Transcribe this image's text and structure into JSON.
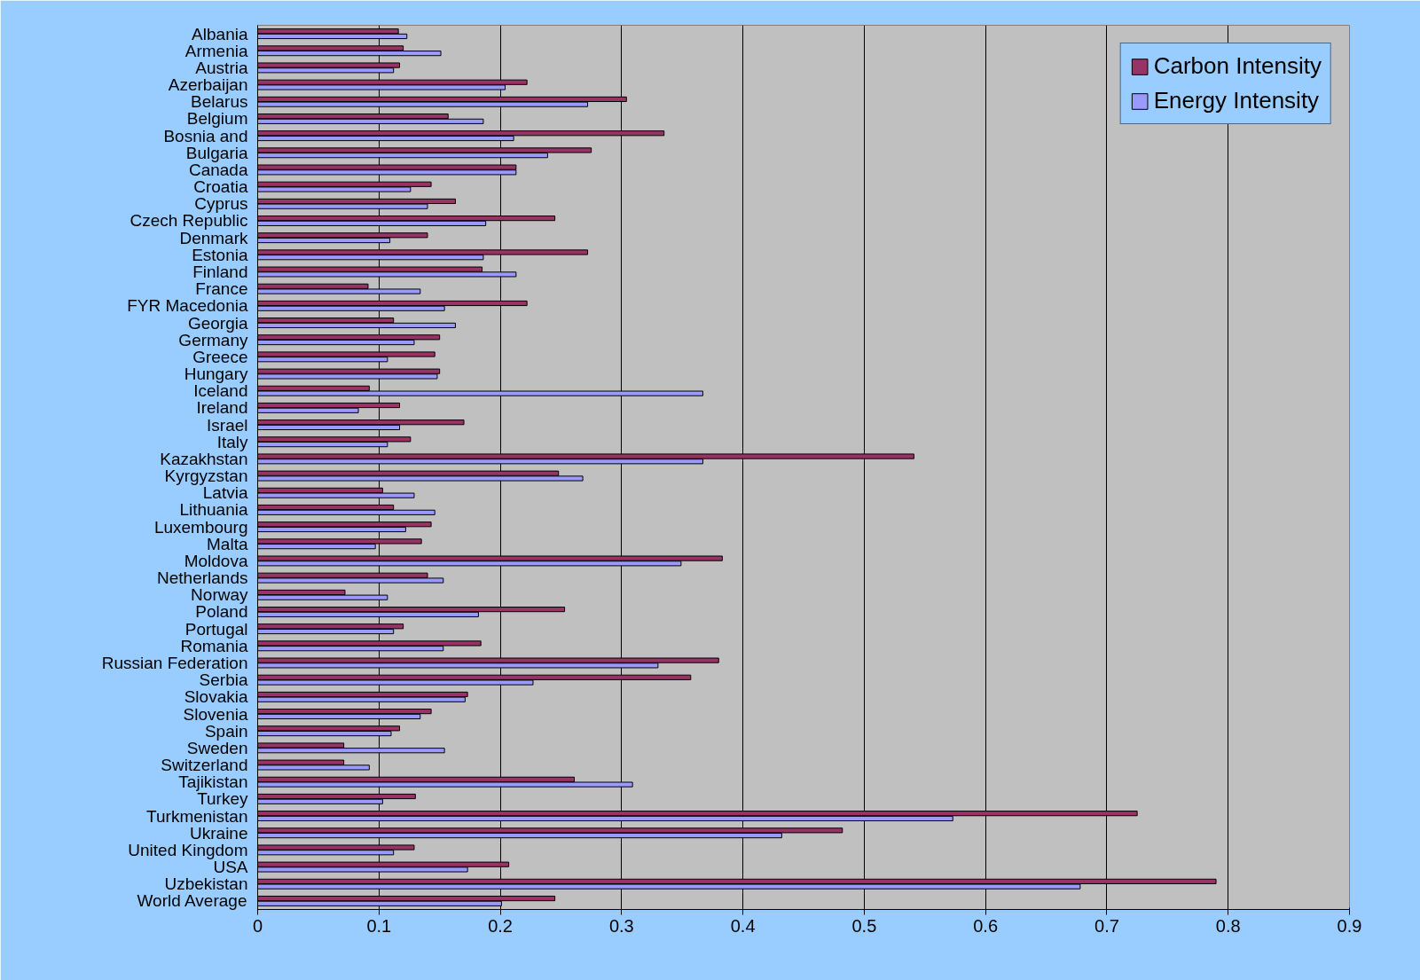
{
  "chart_data": {
    "type": "bar",
    "orientation": "horizontal",
    "categories": [
      "Albania",
      "Armenia",
      "Austria",
      "Azerbaijan",
      "Belarus",
      "Belgium",
      "Bosnia and",
      "Bulgaria",
      "Canada",
      "Croatia",
      "Cyprus",
      "Czech Republic",
      "Denmark",
      "Estonia",
      "Finland",
      "France",
      "FYR Macedonia",
      "Georgia",
      "Germany",
      "Greece",
      "Hungary",
      "Iceland",
      "Ireland",
      "Israel",
      "Italy",
      "Kazakhstan",
      "Kyrgyzstan",
      "Latvia",
      "Lithuania",
      "Luxembourg",
      "Malta",
      "Moldova",
      "Netherlands",
      "Norway",
      "Poland",
      "Portugal",
      "Romania",
      "Russian Federation",
      "Serbia",
      "Slovakia",
      "Slovenia",
      "Spain",
      "Sweden",
      "Switzerland",
      "Tajikistan",
      "Turkey",
      "Turkmenistan",
      "Ukraine",
      "United Kingdom",
      "USA",
      "Uzbekistan",
      "World Average"
    ],
    "series": [
      {
        "name": "Carbon Intensity",
        "color": "#993366",
        "values": [
          0.116,
          0.12,
          0.117,
          0.222,
          0.304,
          0.157,
          0.335,
          0.275,
          0.213,
          0.143,
          0.163,
          0.245,
          0.14,
          0.272,
          0.185,
          0.091,
          0.222,
          0.112,
          0.15,
          0.146,
          0.15,
          0.092,
          0.117,
          0.17,
          0.126,
          0.541,
          0.248,
          0.103,
          0.112,
          0.143,
          0.135,
          0.383,
          0.14,
          0.072,
          0.253,
          0.12,
          0.184,
          0.38,
          0.357,
          0.173,
          0.143,
          0.117,
          0.071,
          0.071,
          0.261,
          0.13,
          0.725,
          0.482,
          0.129,
          0.207,
          0.79,
          0.245
        ]
      },
      {
        "name": "Energy Intensity",
        "color": "#9999ff",
        "values": [
          0.123,
          0.151,
          0.112,
          0.204,
          0.272,
          0.186,
          0.211,
          0.239,
          0.213,
          0.126,
          0.14,
          0.188,
          0.109,
          0.186,
          0.213,
          0.134,
          0.154,
          0.163,
          0.129,
          0.107,
          0.148,
          0.367,
          0.083,
          0.117,
          0.107,
          0.367,
          0.268,
          0.129,
          0.146,
          0.122,
          0.097,
          0.349,
          0.153,
          0.107,
          0.182,
          0.112,
          0.153,
          0.33,
          0.227,
          0.171,
          0.134,
          0.11,
          0.154,
          0.092,
          0.309,
          0.103,
          0.573,
          0.432,
          0.112,
          0.173,
          0.678,
          0.201
        ]
      }
    ],
    "xlim": [
      0,
      0.9
    ],
    "xticks": [
      0,
      0.1,
      0.2,
      0.3,
      0.4,
      0.5,
      0.6,
      0.7,
      0.8,
      0.9
    ],
    "grid": "x",
    "legend": "top right"
  }
}
